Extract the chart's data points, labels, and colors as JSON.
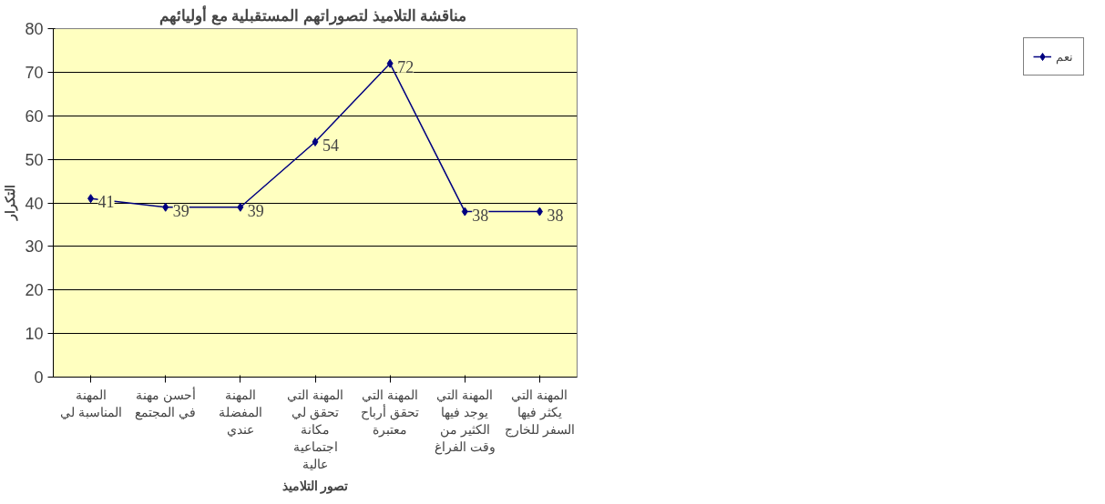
{
  "chart_data": {
    "type": "line",
    "title": "مناقشة  التلاميذ لتصوراتهم المستقبلية مع أوليائهم",
    "xlabel": "تصور التلاميذ",
    "ylabel": "التكرار",
    "categories": [
      "المهنة\nالمناسبة لي",
      "أحسن مهنة\nفي المجتمع",
      "المهنة\nالمفضلة\nعندي",
      "المهنة التي\nتحقق لي\nمكانة\nاجتماعية\nعالية",
      "المهنة التي\nتحقق أرباح\nمعتبرة",
      "المهنة التي\nيوجد فيها\nالكثير من\nوقت الفراغ",
      "المهنة التي\nيكثر فيها\nالسفر للخارج"
    ],
    "series": [
      {
        "name": "نعم",
        "color": "#000080",
        "values": [
          41,
          39,
          39,
          54,
          72,
          38,
          38
        ]
      }
    ],
    "ylim": [
      0,
      80
    ],
    "yticks": [
      0,
      10,
      20,
      30,
      40,
      50,
      60,
      70,
      80
    ],
    "grid": "y",
    "legend": "right",
    "marker": "diamond",
    "data_labels": true
  }
}
